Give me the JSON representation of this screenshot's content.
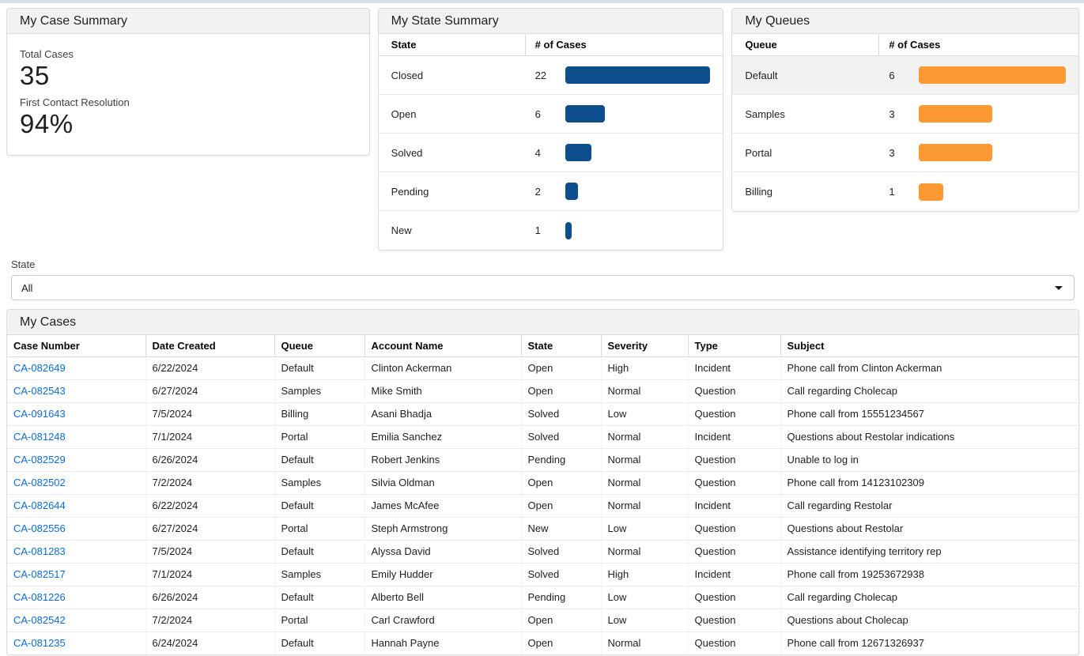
{
  "theme": {
    "bar_blue": "#0d4e8c",
    "bar_orange": "#fb9932",
    "link_blue": "#0b6cd4",
    "header_bg": "#f3f2f2",
    "top_strip": "#d8dfe9",
    "highlight_row": "#f3f2f2"
  },
  "case_summary": {
    "title": "My Case Summary",
    "metrics": [
      {
        "label": "Total Cases",
        "value": "35"
      },
      {
        "label": "First Contact Resolution",
        "value": "94%"
      }
    ]
  },
  "state_summary": {
    "title": "My State Summary",
    "columns": [
      "State",
      "# of Cases"
    ],
    "max": 22,
    "rows": [
      {
        "label": "Closed",
        "count": 22,
        "highlighted": false
      },
      {
        "label": "Open",
        "count": 6,
        "highlighted": false
      },
      {
        "label": "Solved",
        "count": 4,
        "highlighted": false
      },
      {
        "label": "Pending",
        "count": 2,
        "highlighted": false
      },
      {
        "label": "New",
        "count": 1,
        "highlighted": false
      }
    ]
  },
  "queues": {
    "title": "My Queues",
    "columns": [
      "Queue",
      "# of Cases"
    ],
    "max": 6,
    "rows": [
      {
        "label": "Default",
        "count": 6,
        "highlighted": true
      },
      {
        "label": "Samples",
        "count": 3,
        "highlighted": false
      },
      {
        "label": "Portal",
        "count": 3,
        "highlighted": false
      },
      {
        "label": "Billing",
        "count": 1,
        "highlighted": false
      }
    ]
  },
  "filter": {
    "label": "State",
    "value": "All"
  },
  "cases": {
    "title": "My Cases",
    "columns": [
      "Case Number",
      "Date Created",
      "Queue",
      "Account Name",
      "State",
      "Severity",
      "Type",
      "Subject"
    ],
    "rows": [
      [
        "CA-082649",
        "6/22/2024",
        "Default",
        "Clinton Ackerman",
        "Open",
        "High",
        "Incident",
        "Phone call from Clinton Ackerman"
      ],
      [
        "CA-082543",
        "6/27/2024",
        "Samples",
        "Mike Smith",
        "Open",
        "Normal",
        "Question",
        "Call regarding Cholecap"
      ],
      [
        "CA-091643",
        "7/5/2024",
        "Billing",
        "Asani Bhadja",
        "Solved",
        "Low",
        "Question",
        "Phone call from 15551234567"
      ],
      [
        "CA-081248",
        "7/1/2024",
        "Portal",
        "Emilia Sanchez",
        "Solved",
        "Normal",
        "Incident",
        "Questions about Restolar indications"
      ],
      [
        "CA-082529",
        "6/26/2024",
        "Default",
        "Robert Jenkins",
        "Pending",
        "Normal",
        "Question",
        "Unable to log in"
      ],
      [
        "CA-082502",
        "7/2/2024",
        "Samples",
        "Silvia Oldman",
        "Open",
        "Normal",
        "Question",
        "Phone call from 14123102309"
      ],
      [
        "CA-082644",
        "6/22/2024",
        "Default",
        "James McAfee",
        "Open",
        "Normal",
        "Incident",
        "Call regarding Restolar"
      ],
      [
        "CA-082556",
        "6/27/2024",
        "Portal",
        "Steph Armstrong",
        "New",
        "Low",
        "Question",
        "Questions about Restolar"
      ],
      [
        "CA-081283",
        "7/5/2024",
        "Default",
        "Alyssa David",
        "Solved",
        "Normal",
        "Question",
        "Assistance identifying territory rep"
      ],
      [
        "CA-082517",
        "7/1/2024",
        "Samples",
        "Emily Hudder",
        "Solved",
        "High",
        "Incident",
        "Phone call from 19253672938"
      ],
      [
        "CA-081226",
        "6/26/2024",
        "Default",
        "Alberto Bell",
        "Pending",
        "Low",
        "Question",
        "Call regarding Cholecap"
      ],
      [
        "CA-082542",
        "7/2/2024",
        "Portal",
        "Carl Crawford",
        "Open",
        "Low",
        "Question",
        "Questions about Cholecap"
      ],
      [
        "CA-081235",
        "6/24/2024",
        "Default",
        "Hannah Payne",
        "Open",
        "Normal",
        "Question",
        "Phone call from 12671326937"
      ]
    ]
  }
}
